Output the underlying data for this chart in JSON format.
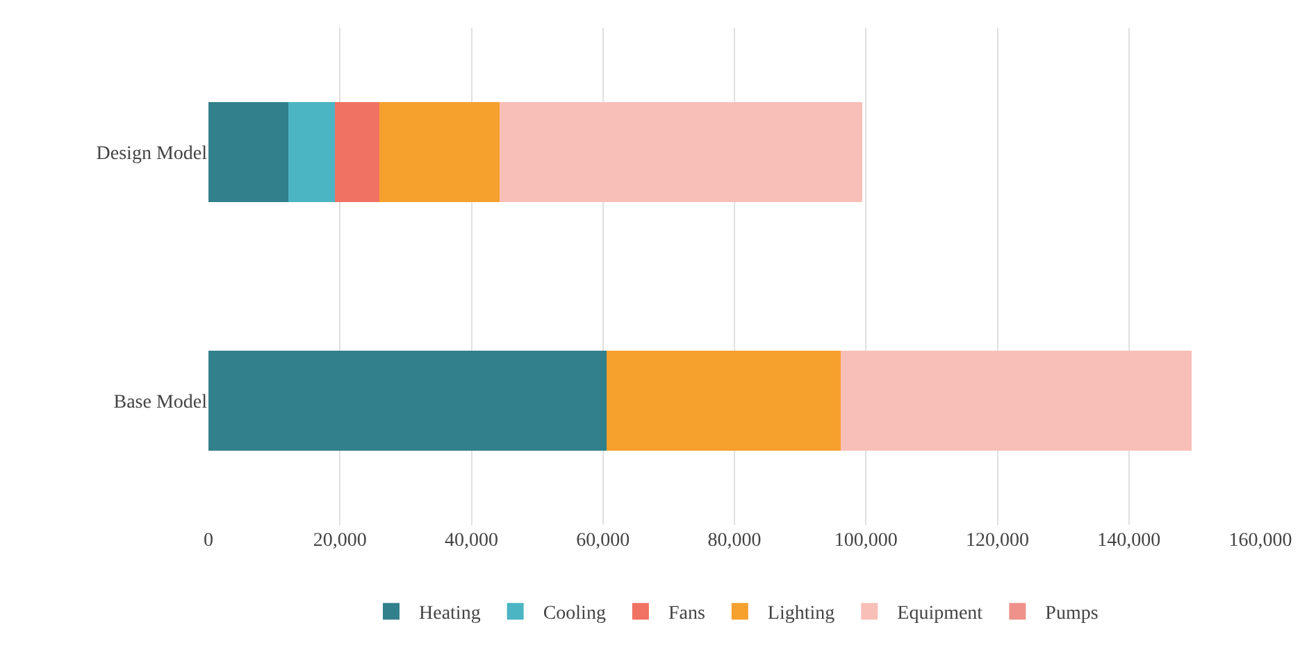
{
  "chart_data": {
    "type": "bar",
    "orientation": "horizontal",
    "stacked": true,
    "categories": [
      "Design Model",
      "Base Model"
    ],
    "series": [
      {
        "name": "Heating",
        "color": "#31808c",
        "values": [
          12100,
          60600
        ]
      },
      {
        "name": "Cooling",
        "color": "#4bb5c4",
        "values": [
          7100,
          null
        ]
      },
      {
        "name": "Fans",
        "color": "#f07262",
        "values": [
          6800,
          null
        ]
      },
      {
        "name": "Lighting",
        "color": "#f6a02e",
        "values": [
          18300,
          35600
        ]
      },
      {
        "name": "Equipment",
        "color": "#f8bfb8",
        "values": [
          55100,
          53300
        ]
      },
      {
        "name": "Pumps",
        "color": "#ee928a",
        "values": [
          null,
          null
        ]
      }
    ],
    "xlim": [
      0,
      160000
    ],
    "xticks": [
      {
        "value": 0,
        "label": "0"
      },
      {
        "value": 20000,
        "label": "20,000"
      },
      {
        "value": 40000,
        "label": "40,000"
      },
      {
        "value": 60000,
        "label": "60,000"
      },
      {
        "value": 80000,
        "label": "80,000"
      },
      {
        "value": 100000,
        "label": "100,000"
      },
      {
        "value": 120000,
        "label": "120,000"
      },
      {
        "value": 140000,
        "label": "140,000"
      },
      {
        "value": 160000,
        "label": "160,000"
      }
    ],
    "grid": "x",
    "legend": "bottom"
  }
}
